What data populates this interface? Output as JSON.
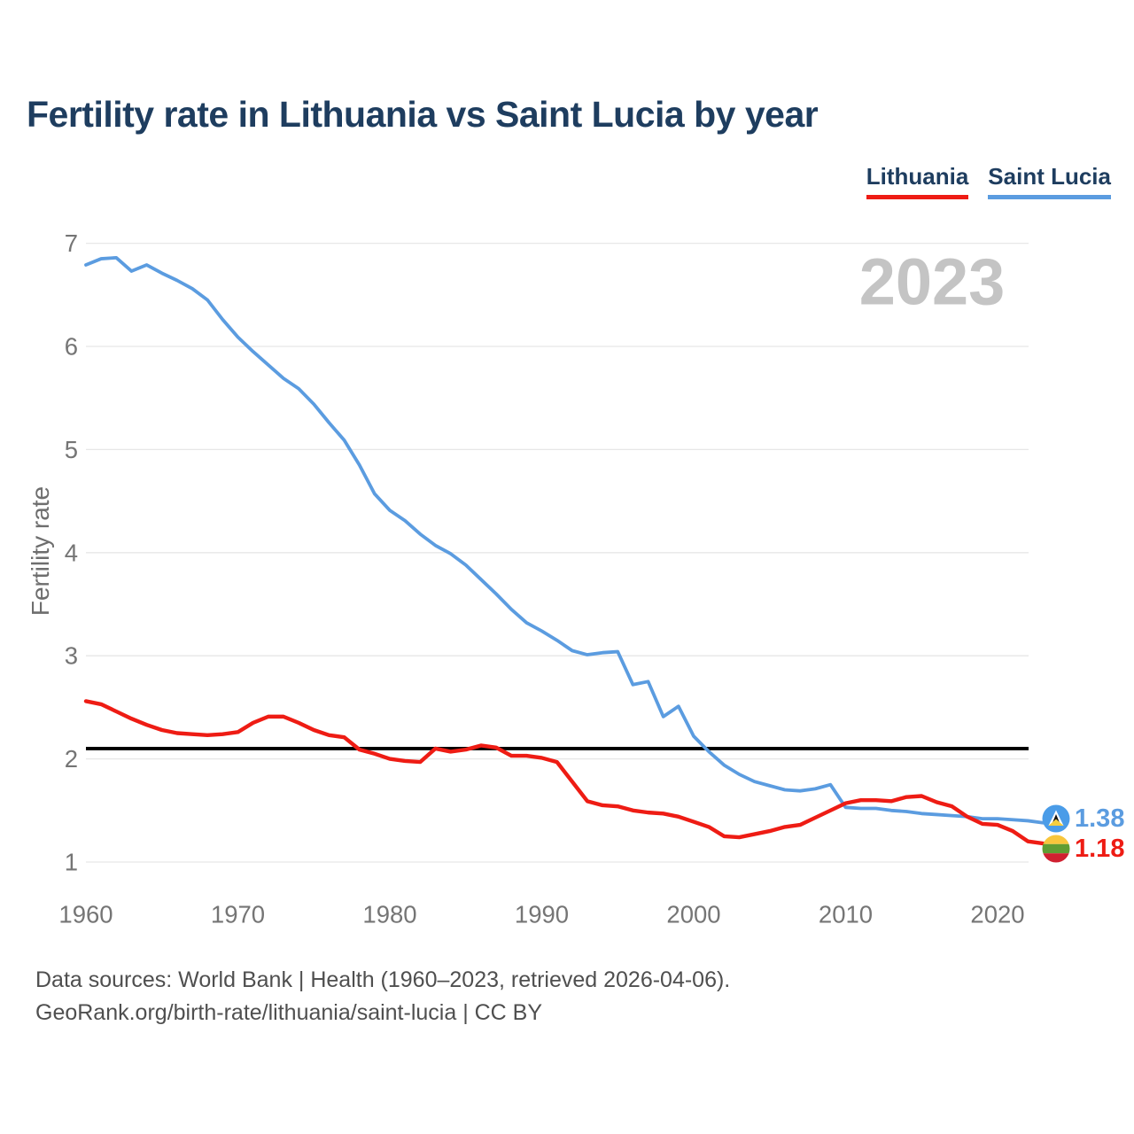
{
  "page": {
    "title": "Fertility rate in Lithuania vs Saint Lucia by year"
  },
  "legend": {
    "items": [
      {
        "label": "Lithuania",
        "color": "#ee1c14"
      },
      {
        "label": "Saint Lucia",
        "color": "#5b9ce0"
      }
    ]
  },
  "watermark": "2023",
  "y_axis": {
    "title": "Fertility rate",
    "ticks": [
      7,
      6,
      5,
      4,
      3,
      2,
      1
    ]
  },
  "x_axis": {
    "ticks": [
      1960,
      1970,
      1980,
      1990,
      2000,
      2010,
      2020
    ]
  },
  "end_labels": [
    {
      "series": "Saint Lucia",
      "value": "1.38",
      "flag": "saint-lucia"
    },
    {
      "series": "Lithuania",
      "value": "1.18",
      "flag": "lithuania"
    }
  ],
  "footer": {
    "line1": "Data sources: World Bank | Health (1960–2023, retrieved 2026-04-06).",
    "line2": "GeoRank.org/birth-rate/lithuania/saint-lucia | CC BY"
  },
  "colors": {
    "title": "#1e3d5f",
    "legend_text": "#1e3d5f",
    "axis_text": "#757575",
    "y_axis_title": "#6e6e6e",
    "gridline": "#e7e7e7",
    "watermark": "#c4c4c4",
    "reference_line": "#000000",
    "footer_text": "#4f4f4f",
    "lithuania_line": "#ee1c14",
    "saint_lucia_line": "#5b9ce0",
    "flag_lt_yellow": "#f8c63c",
    "flag_lt_green": "#609d33",
    "flag_lt_red": "#d02030",
    "flag_lc_blue": "#4a9ce8",
    "flag_lc_yellow": "#f5ce3e",
    "flag_lc_black": "#111111",
    "flag_lc_white": "#ffffff"
  },
  "chart_data": {
    "type": "line",
    "title": "Fertility rate in Lithuania vs Saint Lucia by year",
    "xlabel": "",
    "ylabel": "Fertility rate",
    "xlim": [
      1960,
      2023
    ],
    "ylim": [
      1,
      7
    ],
    "yticks": [
      1,
      2,
      3,
      4,
      5,
      6,
      7
    ],
    "xticks": [
      1960,
      1970,
      1980,
      1990,
      2000,
      2010,
      2020
    ],
    "grid": "horizontal",
    "legend_position": "top-right",
    "watermark": "2023",
    "reference_line": {
      "value": 2.1,
      "meaning": "replacement-level fertility"
    },
    "x": [
      1960,
      1961,
      1962,
      1963,
      1964,
      1965,
      1966,
      1967,
      1968,
      1969,
      1970,
      1971,
      1972,
      1973,
      1974,
      1975,
      1976,
      1977,
      1978,
      1979,
      1980,
      1981,
      1982,
      1983,
      1984,
      1985,
      1986,
      1987,
      1988,
      1989,
      1990,
      1991,
      1992,
      1993,
      1994,
      1995,
      1996,
      1997,
      1998,
      1999,
      2000,
      2001,
      2002,
      2003,
      2004,
      2005,
      2006,
      2007,
      2008,
      2009,
      2010,
      2011,
      2012,
      2013,
      2014,
      2015,
      2016,
      2017,
      2018,
      2019,
      2020,
      2021,
      2022,
      2023
    ],
    "series": [
      {
        "name": "Lithuania",
        "color": "#ee1c14",
        "end_label": "1.18",
        "values": [
          2.56,
          2.53,
          2.46,
          2.39,
          2.33,
          2.28,
          2.25,
          2.24,
          2.23,
          2.24,
          2.26,
          2.35,
          2.41,
          2.41,
          2.35,
          2.28,
          2.23,
          2.21,
          2.09,
          2.05,
          2.0,
          1.98,
          1.97,
          2.1,
          2.07,
          2.09,
          2.13,
          2.11,
          2.03,
          2.03,
          2.01,
          1.97,
          1.78,
          1.59,
          1.55,
          1.54,
          1.5,
          1.48,
          1.47,
          1.44,
          1.39,
          1.34,
          1.25,
          1.24,
          1.27,
          1.3,
          1.34,
          1.36,
          1.43,
          1.5,
          1.57,
          1.6,
          1.6,
          1.59,
          1.63,
          1.64,
          1.58,
          1.54,
          1.44,
          1.37,
          1.36,
          1.3,
          1.2,
          1.18
        ]
      },
      {
        "name": "Saint Lucia",
        "color": "#5b9ce0",
        "end_label": "1.38",
        "values": [
          6.79,
          6.85,
          6.86,
          6.73,
          6.79,
          6.71,
          6.64,
          6.56,
          6.45,
          6.26,
          6.09,
          5.95,
          5.82,
          5.69,
          5.59,
          5.44,
          5.26,
          5.09,
          4.85,
          4.57,
          4.41,
          4.31,
          4.18,
          4.07,
          3.99,
          3.88,
          3.74,
          3.6,
          3.45,
          3.32,
          3.24,
          3.15,
          3.05,
          3.01,
          3.03,
          3.04,
          2.72,
          2.75,
          2.41,
          2.51,
          2.22,
          2.07,
          1.94,
          1.85,
          1.78,
          1.74,
          1.7,
          1.69,
          1.71,
          1.75,
          1.53,
          1.52,
          1.52,
          1.5,
          1.49,
          1.47,
          1.46,
          1.45,
          1.44,
          1.42,
          1.42,
          1.41,
          1.4,
          1.38
        ]
      }
    ]
  }
}
